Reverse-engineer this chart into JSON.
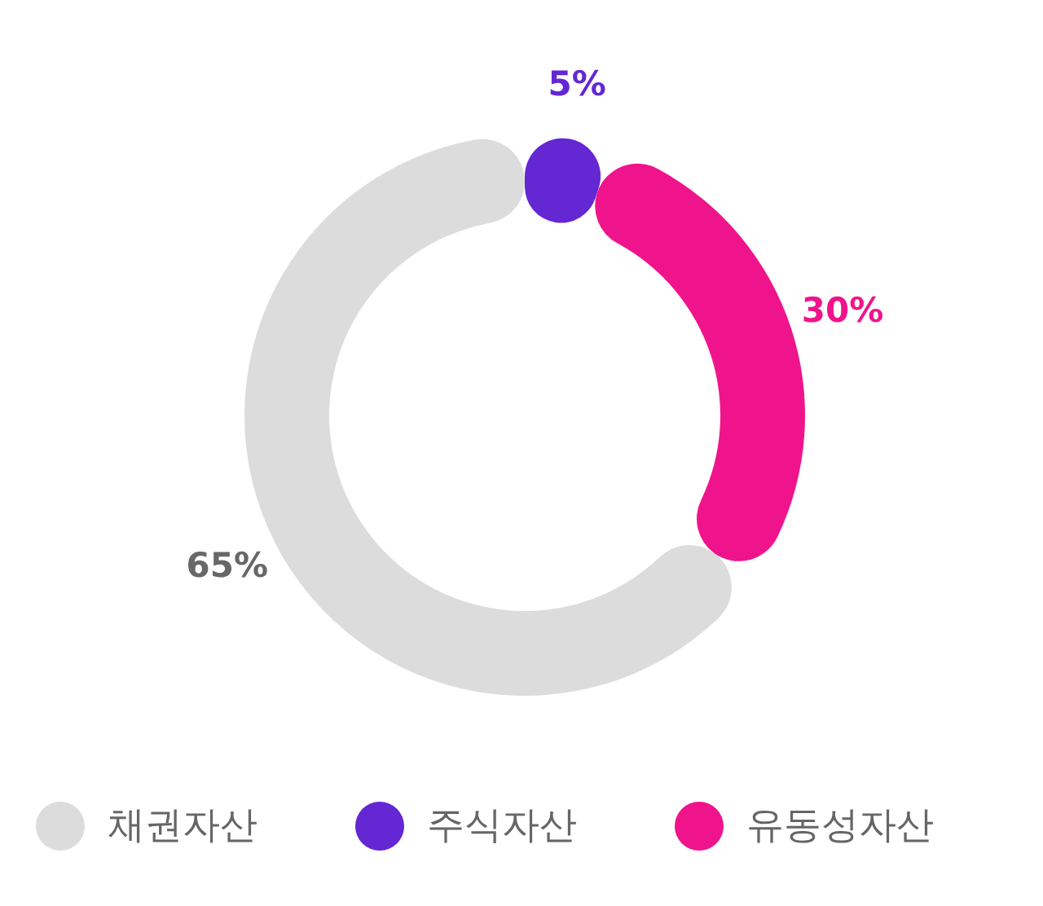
{
  "chart_data": {
    "type": "donut",
    "categories": [
      "채권자산",
      "주식자산",
      "유동성자산"
    ],
    "values": [
      65,
      5,
      30
    ],
    "colors": [
      "#dcdcdc",
      "#6327d4",
      "#f0148c"
    ],
    "value_labels": [
      "65%",
      "5%",
      "30%"
    ],
    "legend": "bottom"
  }
}
